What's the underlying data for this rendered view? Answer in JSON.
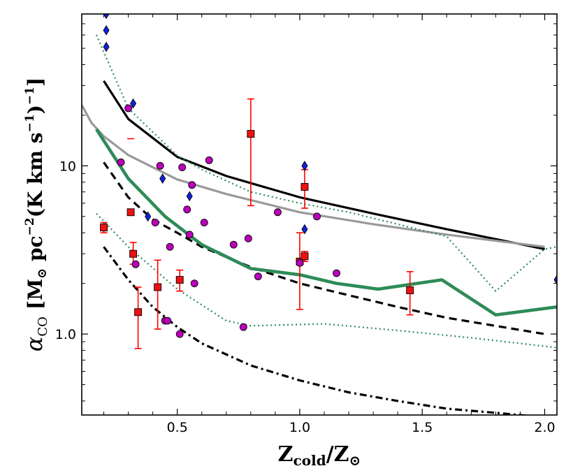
{
  "chart_data": {
    "type": "scatter",
    "xlabel": {
      "main": "Z",
      "sub": "cold",
      "sep": "/Z",
      "sun": "⊙"
    },
    "ylabel": {
      "alpha": "α",
      "alpha_sub": "CO",
      "unit": "[M",
      "sun": "⊙",
      "pc": " pc",
      "pc_exp": "−2",
      "k": "(K km s",
      "s_exp": "−1",
      "close": ")",
      "close_exp": "−1",
      "bracket": "]"
    },
    "x_scale": "linear",
    "y_scale": "log",
    "xlim": [
      0.11,
      2.05
    ],
    "ylim": [
      0.33,
      80
    ],
    "x_ticks": [
      {
        "value": 0.5,
        "label": "0.5"
      },
      {
        "value": 1.0,
        "label": "1.0"
      },
      {
        "value": 1.5,
        "label": "1.5"
      },
      {
        "value": 2.0,
        "label": "2.0"
      }
    ],
    "y_ticks": [
      {
        "value": 1.0,
        "label": "1.0"
      },
      {
        "value": 10,
        "label": "10"
      }
    ],
    "grid": false,
    "colors": {
      "black": "#000000",
      "grey": "#999999",
      "green": "#2e8b57",
      "red_fill": "#ee1111",
      "red_err": "#ff0000",
      "purple": "#bb00bb",
      "blue": "#1122dd"
    },
    "series": [
      {
        "style": "solid-black",
        "x": [
          0.2,
          0.3,
          0.5,
          0.7,
          1.0,
          1.3,
          1.6,
          2.0
        ],
        "y": [
          32,
          19,
          11.3,
          8.7,
          6.5,
          5.2,
          4.2,
          3.2
        ]
      },
      {
        "style": "solid-grey",
        "x": [
          0.11,
          0.15,
          0.2,
          0.3,
          0.5,
          0.7,
          1.0,
          1.3,
          1.6,
          2.0
        ],
        "y": [
          23,
          18,
          15,
          11.6,
          8.3,
          6.8,
          5.3,
          4.5,
          3.9,
          3.3
        ]
      },
      {
        "style": "dashed-black",
        "x": [
          0.2,
          0.3,
          0.4,
          0.5,
          0.6,
          0.8,
          1.0,
          1.2,
          1.4,
          1.6,
          2.0
        ],
        "y": [
          10.5,
          6.5,
          4.8,
          4.0,
          3.3,
          2.5,
          2.0,
          1.7,
          1.45,
          1.25,
          1.0
        ]
      },
      {
        "style": "dashdot-black",
        "x": [
          0.2,
          0.3,
          0.4,
          0.5,
          0.6,
          0.8,
          1.0,
          1.2,
          1.4,
          1.6,
          1.8,
          2.0
        ],
        "y": [
          3.3,
          2.1,
          1.45,
          1.1,
          0.88,
          0.65,
          0.53,
          0.45,
          0.4,
          0.36,
          0.34,
          0.32
        ]
      },
      {
        "style": "thick-green",
        "x": [
          0.17,
          0.3,
          0.45,
          0.6,
          0.8,
          1.0,
          1.15,
          1.32,
          1.58,
          1.8,
          2.05
        ],
        "y": [
          16.5,
          8.4,
          5.0,
          3.4,
          2.45,
          2.25,
          2.0,
          1.85,
          2.1,
          1.3,
          1.45
        ]
      },
      {
        "style": "dotted-green",
        "x": [
          0.17,
          0.3,
          0.5,
          0.6,
          0.8,
          1.0,
          1.2,
          1.4,
          1.6,
          1.8,
          2.0,
          2.05
        ],
        "y": [
          60,
          22,
          11.5,
          9.5,
          7.0,
          6.0,
          5.3,
          4.5,
          3.8,
          1.8,
          3.2,
          3.3
        ]
      },
      {
        "style": "dotted-green",
        "x": [
          0.17,
          0.3,
          0.5,
          0.7,
          0.8,
          1.1,
          1.4,
          1.7,
          2.05
        ],
        "y": [
          5.2,
          3.3,
          1.85,
          1.2,
          1.12,
          1.15,
          1.05,
          0.95,
          0.83
        ]
      },
      {
        "style": "red-square",
        "points": [
          {
            "x": 0.2,
            "y": 4.3,
            "lo": 4.0,
            "hi": 4.6
          },
          {
            "x": 0.31,
            "y": 5.3
          },
          {
            "x": 0.32,
            "y": 3.0,
            "lo": 2.6,
            "hi": 3.5
          },
          {
            "x": 0.34,
            "y": 1.35,
            "lo": 0.82,
            "hi": 1.9
          },
          {
            "x": 0.42,
            "y": 1.9,
            "lo": 1.07,
            "hi": 2.75
          },
          {
            "x": 0.51,
            "y": 2.1,
            "lo": 1.8,
            "hi": 2.4
          },
          {
            "x": 0.8,
            "y": 15.5,
            "lo": 5.8,
            "hi": 25.0
          },
          {
            "x": 1.0,
            "y": 2.7,
            "lo": 1.4,
            "hi": 4.0
          },
          {
            "x": 1.02,
            "y": 7.5,
            "lo": 5.6,
            "hi": 9.5
          },
          {
            "x": 1.02,
            "y": 2.9,
            "lo": 2.7,
            "hi": 3.1
          },
          {
            "x": 1.45,
            "y": 1.82,
            "lo": 1.3,
            "hi": 2.35
          }
        ],
        "lone_caps": [
          {
            "x": 0.31,
            "y": 14.5
          }
        ]
      },
      {
        "style": "purple-circle",
        "points": [
          {
            "x": 0.27,
            "y": 10.5
          },
          {
            "x": 0.3,
            "y": 22
          },
          {
            "x": 0.33,
            "y": 2.6
          },
          {
            "x": 0.41,
            "y": 4.6
          },
          {
            "x": 0.43,
            "y": 10
          },
          {
            "x": 0.45,
            "y": 1.2
          },
          {
            "x": 0.46,
            "y": 1.2
          },
          {
            "x": 0.47,
            "y": 3.3
          },
          {
            "x": 0.51,
            "y": 1.0
          },
          {
            "x": 0.52,
            "y": 9.8
          },
          {
            "x": 0.54,
            "y": 5.5
          },
          {
            "x": 0.55,
            "y": 3.9
          },
          {
            "x": 0.56,
            "y": 7.7
          },
          {
            "x": 0.57,
            "y": 2.0
          },
          {
            "x": 0.61,
            "y": 4.6
          },
          {
            "x": 0.63,
            "y": 10.8
          },
          {
            "x": 0.73,
            "y": 3.4
          },
          {
            "x": 0.77,
            "y": 1.1
          },
          {
            "x": 0.79,
            "y": 3.7
          },
          {
            "x": 0.83,
            "y": 2.2
          },
          {
            "x": 0.91,
            "y": 5.3
          },
          {
            "x": 1.0,
            "y": 2.65
          },
          {
            "x": 1.07,
            "y": 5.0
          },
          {
            "x": 1.15,
            "y": 2.3
          }
        ]
      },
      {
        "style": "blue-diamond",
        "points": [
          {
            "x": 0.21,
            "y": 80
          },
          {
            "x": 0.21,
            "y": 64
          },
          {
            "x": 0.21,
            "y": 51
          },
          {
            "x": 0.32,
            "y": 23.5
          },
          {
            "x": 0.44,
            "y": 8.4
          },
          {
            "x": 0.38,
            "y": 5.0
          },
          {
            "x": 0.55,
            "y": 6.6
          },
          {
            "x": 1.02,
            "y": 10.0
          },
          {
            "x": 1.02,
            "y": 4.2
          },
          {
            "x": 2.05,
            "y": 2.1
          }
        ]
      }
    ]
  }
}
